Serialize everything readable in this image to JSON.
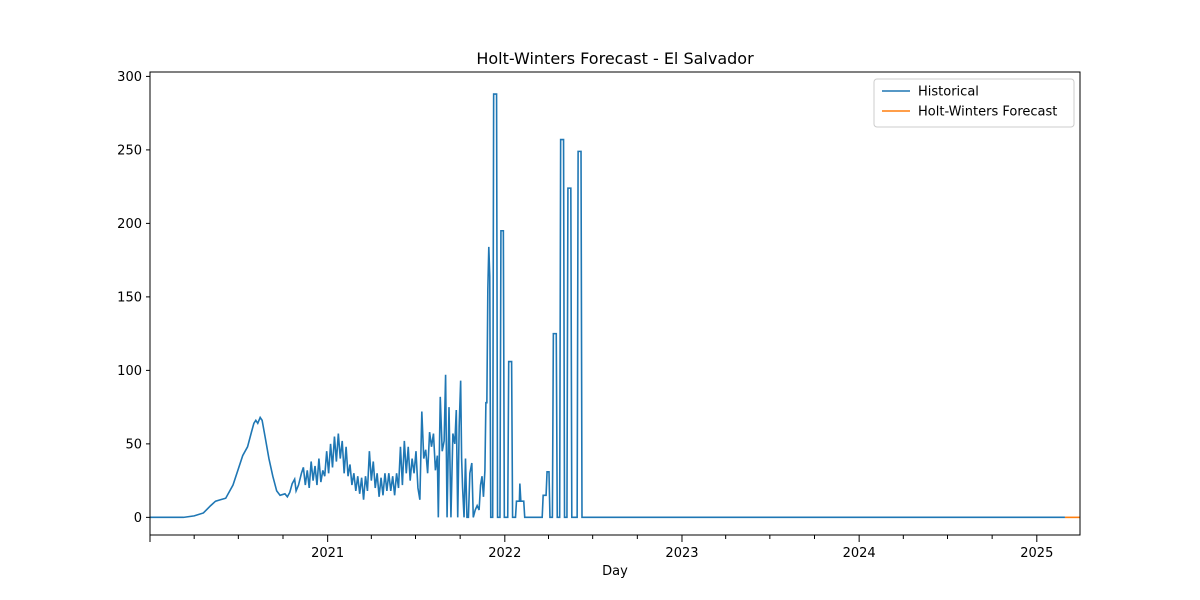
{
  "chart_data": {
    "type": "line",
    "title": "Holt-Winters Forecast - El Salvador",
    "xlabel": "Day",
    "ylabel": "",
    "xlim": [
      "2020-01-01",
      "2025-03-31"
    ],
    "ylim": [
      -12,
      303
    ],
    "yticks": [
      0,
      50,
      100,
      150,
      200,
      250,
      300
    ],
    "xticks": [
      {
        "date": "2021-01-01",
        "label": "2021"
      },
      {
        "date": "2022-01-01",
        "label": "2022"
      },
      {
        "date": "2023-01-01",
        "label": "2023"
      },
      {
        "date": "2024-01-01",
        "label": "2024"
      },
      {
        "date": "2025-01-01",
        "label": "2025"
      }
    ],
    "legend_position": "upper-right",
    "series": [
      {
        "name": "Historical",
        "color": "#1f77b4",
        "points": [
          [
            "2020-01-01",
            0
          ],
          [
            "2020-03-10",
            0
          ],
          [
            "2020-04-01",
            1
          ],
          [
            "2020-04-20",
            3
          ],
          [
            "2020-05-05",
            8
          ],
          [
            "2020-05-15",
            11
          ],
          [
            "2020-05-25",
            12
          ],
          [
            "2020-06-05",
            13
          ],
          [
            "2020-06-20",
            22
          ],
          [
            "2020-07-01",
            33
          ],
          [
            "2020-07-10",
            42
          ],
          [
            "2020-07-20",
            48
          ],
          [
            "2020-07-28",
            58
          ],
          [
            "2020-08-02",
            64
          ],
          [
            "2020-08-06",
            66
          ],
          [
            "2020-08-10",
            64
          ],
          [
            "2020-08-15",
            68
          ],
          [
            "2020-08-19",
            66
          ],
          [
            "2020-08-25",
            55
          ],
          [
            "2020-09-02",
            40
          ],
          [
            "2020-09-10",
            28
          ],
          [
            "2020-09-18",
            18
          ],
          [
            "2020-09-25",
            15
          ],
          [
            "2020-10-05",
            16
          ],
          [
            "2020-10-10",
            14
          ],
          [
            "2020-10-15",
            17
          ],
          [
            "2020-10-20",
            23
          ],
          [
            "2020-10-25",
            26
          ],
          [
            "2020-10-28",
            18
          ],
          [
            "2020-11-02",
            22
          ],
          [
            "2020-11-08",
            30
          ],
          [
            "2020-11-12",
            34
          ],
          [
            "2020-11-16",
            22
          ],
          [
            "2020-11-20",
            32
          ],
          [
            "2020-11-24",
            20
          ],
          [
            "2020-11-28",
            38
          ],
          [
            "2020-12-02",
            25
          ],
          [
            "2020-12-06",
            35
          ],
          [
            "2020-12-10",
            22
          ],
          [
            "2020-12-14",
            40
          ],
          [
            "2020-12-18",
            24
          ],
          [
            "2020-12-22",
            32
          ],
          [
            "2020-12-26",
            28
          ],
          [
            "2020-12-30",
            45
          ],
          [
            "2021-01-03",
            30
          ],
          [
            "2021-01-07",
            50
          ],
          [
            "2021-01-11",
            34
          ],
          [
            "2021-01-15",
            55
          ],
          [
            "2021-01-19",
            38
          ],
          [
            "2021-01-23",
            57
          ],
          [
            "2021-01-27",
            40
          ],
          [
            "2021-01-31",
            52
          ],
          [
            "2021-02-04",
            30
          ],
          [
            "2021-02-08",
            48
          ],
          [
            "2021-02-12",
            28
          ],
          [
            "2021-02-16",
            36
          ],
          [
            "2021-02-20",
            22
          ],
          [
            "2021-02-24",
            30
          ],
          [
            "2021-02-28",
            18
          ],
          [
            "2021-03-04",
            28
          ],
          [
            "2021-03-08",
            16
          ],
          [
            "2021-03-12",
            27
          ],
          [
            "2021-03-16",
            12
          ],
          [
            "2021-03-20",
            28
          ],
          [
            "2021-03-24",
            18
          ],
          [
            "2021-03-28",
            45
          ],
          [
            "2021-04-01",
            25
          ],
          [
            "2021-04-05",
            38
          ],
          [
            "2021-04-09",
            20
          ],
          [
            "2021-04-13",
            30
          ],
          [
            "2021-04-17",
            14
          ],
          [
            "2021-04-21",
            27
          ],
          [
            "2021-04-25",
            15
          ],
          [
            "2021-04-29",
            30
          ],
          [
            "2021-05-03",
            18
          ],
          [
            "2021-05-07",
            30
          ],
          [
            "2021-05-11",
            18
          ],
          [
            "2021-05-15",
            28
          ],
          [
            "2021-05-19",
            15
          ],
          [
            "2021-05-23",
            30
          ],
          [
            "2021-05-27",
            20
          ],
          [
            "2021-05-31",
            48
          ],
          [
            "2021-06-04",
            22
          ],
          [
            "2021-06-08",
            52
          ],
          [
            "2021-06-12",
            30
          ],
          [
            "2021-06-16",
            48
          ],
          [
            "2021-06-20",
            25
          ],
          [
            "2021-06-24",
            40
          ],
          [
            "2021-06-28",
            30
          ],
          [
            "2021-07-02",
            45
          ],
          [
            "2021-07-06",
            20
          ],
          [
            "2021-07-10",
            12
          ],
          [
            "2021-07-14",
            72
          ],
          [
            "2021-07-18",
            40
          ],
          [
            "2021-07-22",
            46
          ],
          [
            "2021-07-26",
            30
          ],
          [
            "2021-07-30",
            58
          ],
          [
            "2021-08-03",
            48
          ],
          [
            "2021-08-07",
            57
          ],
          [
            "2021-08-11",
            32
          ],
          [
            "2021-08-15",
            42
          ],
          [
            "2021-08-17",
            0
          ],
          [
            "2021-08-21",
            82
          ],
          [
            "2021-08-25",
            45
          ],
          [
            "2021-08-29",
            52
          ],
          [
            "2021-09-01",
            97
          ],
          [
            "2021-09-04",
            0
          ],
          [
            "2021-09-08",
            75
          ],
          [
            "2021-09-12",
            0
          ],
          [
            "2021-09-16",
            57
          ],
          [
            "2021-09-20",
            50
          ],
          [
            "2021-09-23",
            73
          ],
          [
            "2021-09-26",
            0
          ],
          [
            "2021-09-29",
            62
          ],
          [
            "2021-10-02",
            93
          ],
          [
            "2021-10-04",
            40
          ],
          [
            "2021-10-06",
            20
          ],
          [
            "2021-10-09",
            0
          ],
          [
            "2021-10-12",
            40
          ],
          [
            "2021-10-15",
            0
          ],
          [
            "2021-10-18",
            0
          ],
          [
            "2021-10-21",
            30
          ],
          [
            "2021-10-25",
            37
          ],
          [
            "2021-10-28",
            0
          ],
          [
            "2021-11-01",
            5
          ],
          [
            "2021-11-05",
            8
          ],
          [
            "2021-11-09",
            5
          ],
          [
            "2021-11-12",
            22
          ],
          [
            "2021-11-15",
            28
          ],
          [
            "2021-11-18",
            14
          ],
          [
            "2021-11-21",
            32
          ],
          [
            "2021-11-23",
            78
          ],
          [
            "2021-11-25",
            78
          ],
          [
            "2021-11-27",
            155
          ],
          [
            "2021-11-29",
            184
          ],
          [
            "2021-12-01",
            164
          ],
          [
            "2021-12-03",
            0
          ],
          [
            "2021-12-07",
            0
          ],
          [
            "2021-12-09",
            288
          ],
          [
            "2021-12-15",
            288
          ],
          [
            "2021-12-17",
            0
          ],
          [
            "2021-12-22",
            0
          ],
          [
            "2021-12-24",
            195
          ],
          [
            "2021-12-29",
            195
          ],
          [
            "2021-12-31",
            0
          ],
          [
            "2022-01-07",
            0
          ],
          [
            "2022-01-09",
            106
          ],
          [
            "2022-01-15",
            106
          ],
          [
            "2022-01-17",
            0
          ],
          [
            "2022-01-23",
            0
          ],
          [
            "2022-01-25",
            11
          ],
          [
            "2022-01-31",
            11
          ],
          [
            "2022-02-01",
            23
          ],
          [
            "2022-02-03",
            11
          ],
          [
            "2022-02-09",
            11
          ],
          [
            "2022-02-11",
            0
          ],
          [
            "2022-03-19",
            0
          ],
          [
            "2022-03-21",
            15
          ],
          [
            "2022-03-27",
            15
          ],
          [
            "2022-03-29",
            31
          ],
          [
            "2022-04-02",
            31
          ],
          [
            "2022-04-04",
            0
          ],
          [
            "2022-04-09",
            0
          ],
          [
            "2022-04-11",
            125
          ],
          [
            "2022-04-17",
            125
          ],
          [
            "2022-04-19",
            0
          ],
          [
            "2022-04-24",
            0
          ],
          [
            "2022-04-26",
            257
          ],
          [
            "2022-05-02",
            257
          ],
          [
            "2022-05-04",
            0
          ],
          [
            "2022-05-09",
            0
          ],
          [
            "2022-05-11",
            224
          ],
          [
            "2022-05-17",
            224
          ],
          [
            "2022-05-19",
            0
          ],
          [
            "2022-05-30",
            0
          ],
          [
            "2022-06-01",
            249
          ],
          [
            "2022-06-07",
            249
          ],
          [
            "2022-06-09",
            0
          ],
          [
            "2025-02-28",
            0
          ]
        ]
      },
      {
        "name": "Holt-Winters Forecast",
        "color": "#ff7f0e",
        "points": [
          [
            "2025-02-28",
            0
          ],
          [
            "2025-03-31",
            0
          ]
        ]
      }
    ]
  }
}
